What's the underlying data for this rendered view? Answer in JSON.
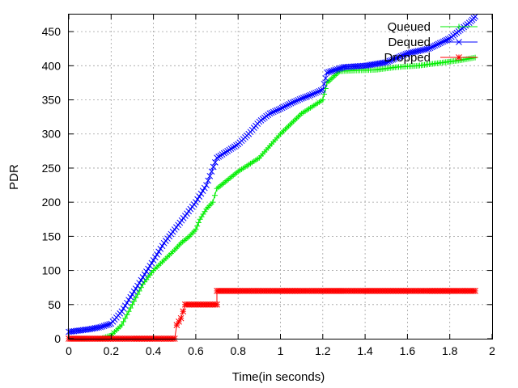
{
  "chart_data": {
    "type": "line",
    "title": "",
    "xlabel": "Time(in seconds)",
    "ylabel": "PDR",
    "xlim": [
      0,
      2
    ],
    "ylim": [
      0,
      475
    ],
    "x_ticks": [
      "0",
      "0.2",
      "0.4",
      "0.6",
      "0.8",
      "1",
      "1.2",
      "1.4",
      "1.6",
      "1.8",
      "2"
    ],
    "y_ticks": [
      "0",
      "50",
      "100",
      "150",
      "200",
      "250",
      "300",
      "350",
      "400",
      "450"
    ],
    "grid": true,
    "legend_position": "top-right",
    "series": [
      {
        "name": "Queued",
        "color": "#00ee00",
        "marker": "plus",
        "points": [
          [
            0.0,
            0
          ],
          [
            0.05,
            0
          ],
          [
            0.1,
            0
          ],
          [
            0.15,
            0
          ],
          [
            0.2,
            5
          ],
          [
            0.25,
            20
          ],
          [
            0.3,
            50
          ],
          [
            0.35,
            80
          ],
          [
            0.4,
            100
          ],
          [
            0.45,
            115
          ],
          [
            0.5,
            130
          ],
          [
            0.53,
            140
          ],
          [
            0.57,
            150
          ],
          [
            0.6,
            160
          ],
          [
            0.62,
            175
          ],
          [
            0.65,
            190
          ],
          [
            0.68,
            200
          ],
          [
            0.7,
            220
          ],
          [
            0.8,
            245
          ],
          [
            0.9,
            265
          ],
          [
            1.0,
            300
          ],
          [
            1.1,
            330
          ],
          [
            1.2,
            350
          ],
          [
            1.22,
            375
          ],
          [
            1.28,
            392
          ],
          [
            1.35,
            393
          ],
          [
            1.45,
            394
          ],
          [
            1.55,
            398
          ],
          [
            1.65,
            400
          ],
          [
            1.75,
            404
          ],
          [
            1.85,
            408
          ],
          [
            1.92,
            412
          ]
        ]
      },
      {
        "name": "Dequed",
        "color": "#0000ff",
        "marker": "cross",
        "points": [
          [
            0.0,
            10
          ],
          [
            0.05,
            12
          ],
          [
            0.1,
            14
          ],
          [
            0.15,
            17
          ],
          [
            0.2,
            22
          ],
          [
            0.25,
            40
          ],
          [
            0.3,
            65
          ],
          [
            0.35,
            90
          ],
          [
            0.4,
            115
          ],
          [
            0.45,
            140
          ],
          [
            0.5,
            160
          ],
          [
            0.55,
            180
          ],
          [
            0.6,
            200
          ],
          [
            0.65,
            225
          ],
          [
            0.7,
            265
          ],
          [
            0.75,
            275
          ],
          [
            0.8,
            285
          ],
          [
            0.85,
            300
          ],
          [
            0.9,
            318
          ],
          [
            0.95,
            330
          ],
          [
            1.0,
            337
          ],
          [
            1.05,
            345
          ],
          [
            1.1,
            352
          ],
          [
            1.15,
            358
          ],
          [
            1.2,
            365
          ],
          [
            1.22,
            390
          ],
          [
            1.3,
            398
          ],
          [
            1.4,
            400
          ],
          [
            1.5,
            405
          ],
          [
            1.6,
            418
          ],
          [
            1.7,
            425
          ],
          [
            1.8,
            440
          ],
          [
            1.9,
            465
          ],
          [
            1.92,
            472
          ]
        ]
      },
      {
        "name": "Dropped",
        "color": "#ff0000",
        "marker": "star",
        "points": [
          [
            0.0,
            0
          ],
          [
            0.1,
            0
          ],
          [
            0.2,
            0
          ],
          [
            0.3,
            0
          ],
          [
            0.4,
            0
          ],
          [
            0.5,
            0
          ],
          [
            0.51,
            20
          ],
          [
            0.52,
            25
          ],
          [
            0.53,
            30
          ],
          [
            0.54,
            40
          ],
          [
            0.55,
            50
          ],
          [
            0.6,
            50
          ],
          [
            0.65,
            50
          ],
          [
            0.7,
            50
          ],
          [
            0.7,
            70
          ],
          [
            0.8,
            70
          ],
          [
            0.9,
            70
          ],
          [
            1.0,
            70
          ],
          [
            1.1,
            70
          ],
          [
            1.2,
            70
          ],
          [
            1.3,
            70
          ],
          [
            1.4,
            70
          ],
          [
            1.5,
            70
          ],
          [
            1.6,
            70
          ],
          [
            1.7,
            70
          ],
          [
            1.8,
            70
          ],
          [
            1.92,
            70
          ]
        ]
      }
    ]
  }
}
